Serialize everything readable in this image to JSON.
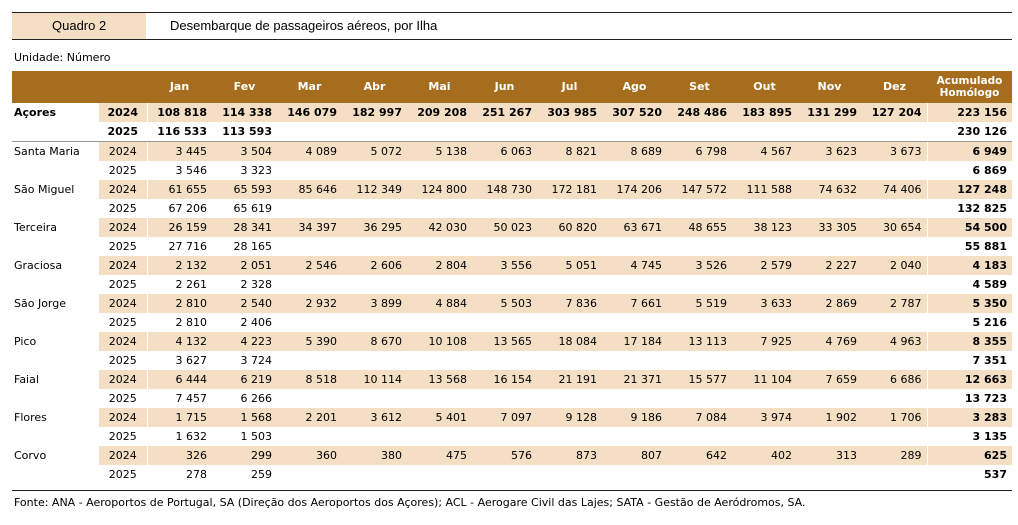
{
  "header": {
    "quadro": "Quadro 2",
    "title": "Desembarque de passageiros aéreos, por Ilha"
  },
  "unit": "Unidade: Número",
  "columns": [
    "Jan",
    "Fev",
    "Mar",
    "Abr",
    "Mai",
    "Jun",
    "Jul",
    "Ago",
    "Set",
    "Out",
    "Nov",
    "Dez"
  ],
  "acc_header": [
    "Acumulado",
    "Homólogo"
  ],
  "rows": [
    {
      "region": "Açores",
      "year": "2024",
      "values": [
        "108 818",
        "114 338",
        "146 079",
        "182 997",
        "209 208",
        "251 267",
        "303 985",
        "307 520",
        "248 486",
        "183 895",
        "131 299",
        "127 204"
      ],
      "acc": "223 156"
    },
    {
      "region": "",
      "year": "2025",
      "values": [
        "116 533",
        "113 593",
        "",
        "",
        "",
        "",
        "",
        "",
        "",
        "",
        "",
        ""
      ],
      "acc": "230 126"
    },
    {
      "region": "Santa Maria",
      "year": "2024",
      "values": [
        "3 445",
        "3 504",
        "4 089",
        "5 072",
        "5 138",
        "6 063",
        "8 821",
        "8 689",
        "6 798",
        "4 567",
        "3 623",
        "3 673"
      ],
      "acc": "6 949"
    },
    {
      "region": "",
      "year": "2025",
      "values": [
        "3 546",
        "3 323",
        "",
        "",
        "",
        "",
        "",
        "",
        "",
        "",
        "",
        ""
      ],
      "acc": "6 869"
    },
    {
      "region": "São Miguel",
      "year": "2024",
      "values": [
        "61 655",
        "65 593",
        "85 646",
        "112 349",
        "124 800",
        "148 730",
        "172 181",
        "174 206",
        "147 572",
        "111 588",
        "74 632",
        "74 406"
      ],
      "acc": "127 248"
    },
    {
      "region": "",
      "year": "2025",
      "values": [
        "67 206",
        "65 619",
        "",
        "",
        "",
        "",
        "",
        "",
        "",
        "",
        "",
        ""
      ],
      "acc": "132 825"
    },
    {
      "region": "Terceira",
      "year": "2024",
      "values": [
        "26 159",
        "28 341",
        "34 397",
        "36 295",
        "42 030",
        "50 023",
        "60 820",
        "63 671",
        "48 655",
        "38 123",
        "33 305",
        "30 654"
      ],
      "acc": "54 500"
    },
    {
      "region": "",
      "year": "2025",
      "values": [
        "27 716",
        "28 165",
        "",
        "",
        "",
        "",
        "",
        "",
        "",
        "",
        "",
        ""
      ],
      "acc": "55 881"
    },
    {
      "region": "Graciosa",
      "year": "2024",
      "values": [
        "2 132",
        "2 051",
        "2 546",
        "2 606",
        "2 804",
        "3 556",
        "5 051",
        "4 745",
        "3 526",
        "2 579",
        "2 227",
        "2 040"
      ],
      "acc": "4 183"
    },
    {
      "region": "",
      "year": "2025",
      "values": [
        "2 261",
        "2 328",
        "",
        "",
        "",
        "",
        "",
        "",
        "",
        "",
        "",
        ""
      ],
      "acc": "4 589"
    },
    {
      "region": "São Jorge",
      "year": "2024",
      "values": [
        "2 810",
        "2 540",
        "2 932",
        "3 899",
        "4 884",
        "5 503",
        "7 836",
        "7 661",
        "5 519",
        "3 633",
        "2 869",
        "2 787"
      ],
      "acc": "5 350"
    },
    {
      "region": "",
      "year": "2025",
      "values": [
        "2 810",
        "2 406",
        "",
        "",
        "",
        "",
        "",
        "",
        "",
        "",
        "",
        ""
      ],
      "acc": "5 216"
    },
    {
      "region": "Pico",
      "year": "2024",
      "values": [
        "4 132",
        "4 223",
        "5 390",
        "8 670",
        "10 108",
        "13 565",
        "18 084",
        "17 184",
        "13 113",
        "7 925",
        "4 769",
        "4 963"
      ],
      "acc": "8 355"
    },
    {
      "region": "",
      "year": "2025",
      "values": [
        "3 627",
        "3 724",
        "",
        "",
        "",
        "",
        "",
        "",
        "",
        "",
        "",
        ""
      ],
      "acc": "7 351"
    },
    {
      "region": "Faial",
      "year": "2024",
      "values": [
        "6 444",
        "6 219",
        "8 518",
        "10 114",
        "13 568",
        "16 154",
        "21 191",
        "21 371",
        "15 577",
        "11 104",
        "7 659",
        "6 686"
      ],
      "acc": "12 663"
    },
    {
      "region": "",
      "year": "2025",
      "values": [
        "7 457",
        "6 266",
        "",
        "",
        "",
        "",
        "",
        "",
        "",
        "",
        "",
        ""
      ],
      "acc": "13 723"
    },
    {
      "region": "Flores",
      "year": "2024",
      "values": [
        "1 715",
        "1 568",
        "2 201",
        "3 612",
        "5 401",
        "7 097",
        "9 128",
        "9 186",
        "7 084",
        "3 974",
        "1 902",
        "1 706"
      ],
      "acc": "3 283"
    },
    {
      "region": "",
      "year": "2025",
      "values": [
        "1 632",
        "1 503",
        "",
        "",
        "",
        "",
        "",
        "",
        "",
        "",
        "",
        ""
      ],
      "acc": "3 135"
    },
    {
      "region": "Corvo",
      "year": "2024",
      "values": [
        "326",
        "299",
        "360",
        "380",
        "475",
        "576",
        "873",
        "807",
        "642",
        "402",
        "313",
        "289"
      ],
      "acc": "625"
    },
    {
      "region": "",
      "year": "2025",
      "values": [
        "278",
        "259",
        "",
        "",
        "",
        "",
        "",
        "",
        "",
        "",
        "",
        ""
      ],
      "acc": "537"
    }
  ],
  "footer": "Fonte: ANA - Aeroportos de Portugal, SA (Direção dos Aeroportos dos Açores); ACL - Aerogare Civil das Lajes; SATA - Gestão de Aeródromos, SA."
}
